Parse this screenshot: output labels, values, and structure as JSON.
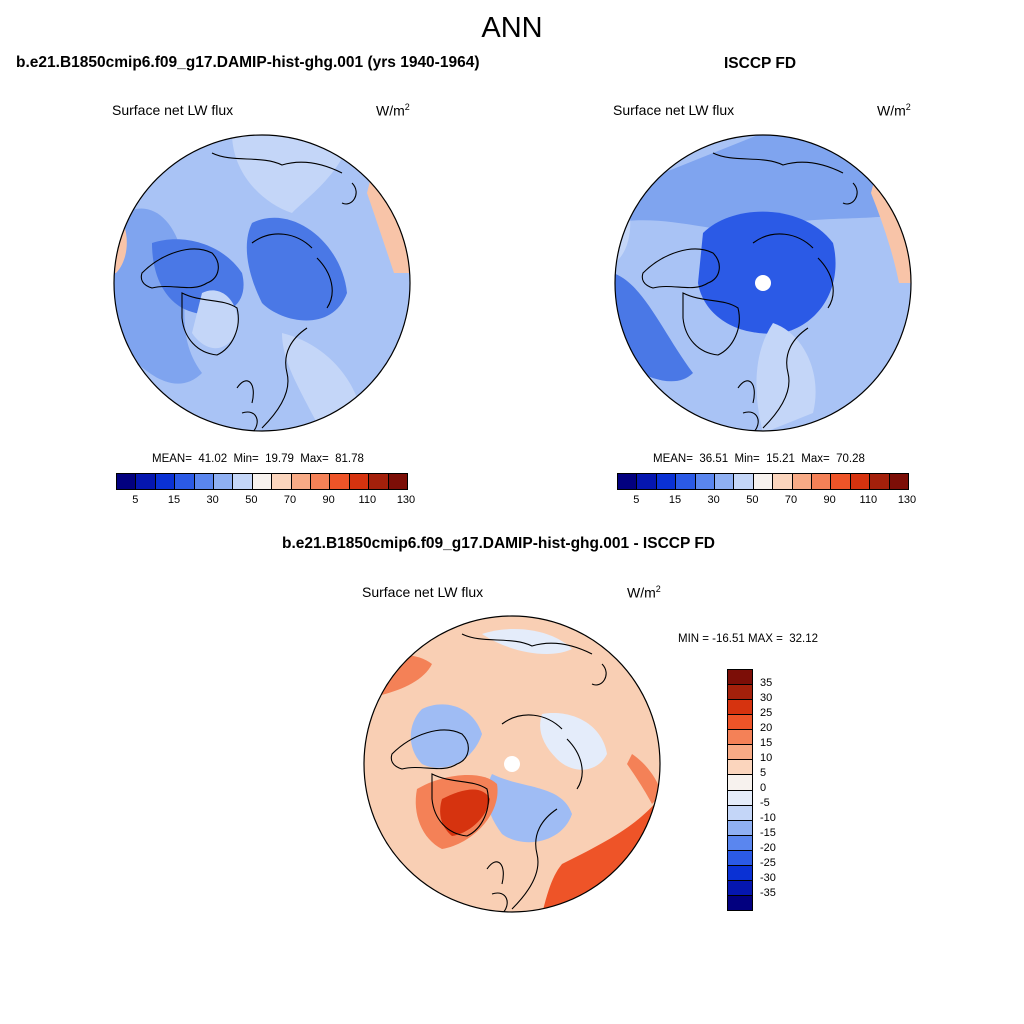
{
  "title": "ANN",
  "panels": {
    "model": {
      "title": "b.e21.B1850cmip6.f09_g17.DAMIP-hist-ghg.001 (yrs 1940-1964)",
      "variable": "Surface net LW flux",
      "units": "W/m",
      "units_exp": "2",
      "stats": "MEAN=  41.02  Min=  19.79  Max=  81.78"
    },
    "obs": {
      "title": "ISCCP FD",
      "variable": "Surface net LW flux",
      "units": "W/m",
      "units_exp": "2",
      "stats": "MEAN=  36.51  Min=  15.21  Max=  70.28"
    },
    "diff": {
      "title": "b.e21.B1850cmip6.f09_g17.DAMIP-hist-ghg.001 - ISCCP FD",
      "variable": "Surface net LW flux",
      "units": "W/m",
      "units_exp": "2",
      "stats": "MIN = -16.51 MAX =  32.12"
    }
  },
  "colorbars": {
    "abs": {
      "colors": [
        "#02007f",
        "#0516b0",
        "#0a31d4",
        "#2b5ae6",
        "#5a86ef",
        "#8fb0f3",
        "#c4d6f8",
        "#f7f2ee",
        "#fbd5bd",
        "#f8ab86",
        "#f48157",
        "#ee5428",
        "#d6330f",
        "#a4200b",
        "#7c0e07"
      ],
      "labels": [
        "5",
        "15",
        "30",
        "50",
        "70",
        "90",
        "110",
        "130"
      ]
    },
    "diff": {
      "colors": [
        "#7c0e07",
        "#a4200b",
        "#d6330f",
        "#ee5428",
        "#f48157",
        "#f8ab86",
        "#fbd5bd",
        "#f7f2ee",
        "#e4ecfa",
        "#c4d6f8",
        "#8fb0f3",
        "#5a86ef",
        "#2b5ae6",
        "#0a31d4",
        "#0516b0",
        "#02007f"
      ],
      "labels": [
        "35",
        "30",
        "25",
        "20",
        "15",
        "10",
        "5",
        "0",
        "-5",
        "-10",
        "-15",
        "-20",
        "-25",
        "-30",
        "-35"
      ]
    }
  },
  "map_colors": {
    "model": {
      "base": "#a9c3f5",
      "mid": "#7fa4ef",
      "deep": "#4a78e6",
      "light": "#c4d6f8",
      "warm": "#f8c4a8"
    },
    "obs": {
      "base": "#a9c3f5",
      "mid": "#7fa4ef",
      "deep": "#2b5ae6",
      "light": "#c4d6f8",
      "warm": "#f8c4a8"
    },
    "diff": {
      "base": "#f9cfb4",
      "neutral": "#e4ecfa",
      "blue": "#9fbcf4",
      "warm": "#f48157",
      "hot": "#ee5428",
      "deep": "#d6330f"
    }
  }
}
